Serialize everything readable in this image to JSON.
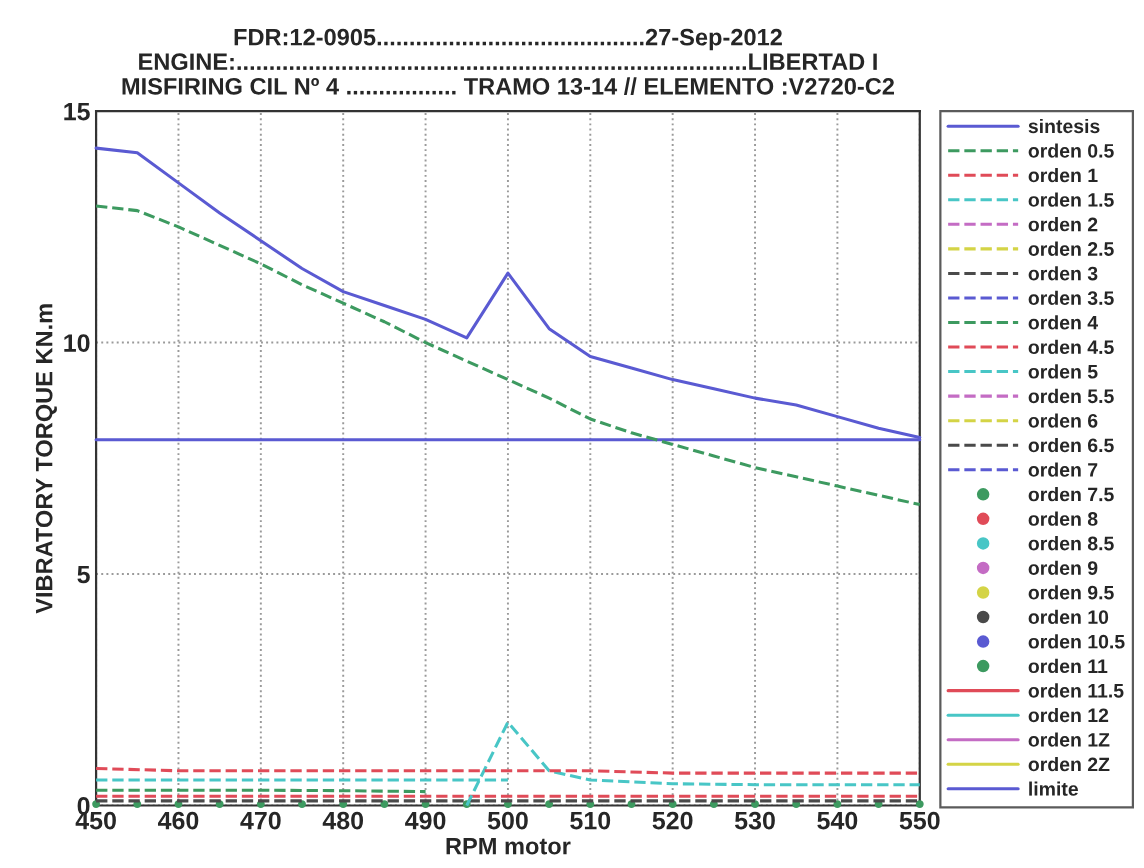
{
  "chart_data": {
    "type": "line",
    "title": "FDR:12-0905.........................................27-Sep-2012\nENGINE:..............................................................................LIBERTAD I\nMISFIRING CIL Nº 4 ................. TRAMO 13-14 // ELEMENTO :V2720-C2",
    "xlabel": "RPM motor",
    "ylabel": "VIBRATORY TORQUE KN.m",
    "x": [
      450,
      460,
      470,
      480,
      490,
      500,
      510,
      520,
      530,
      540,
      550
    ],
    "xlim": [
      450,
      550
    ],
    "ylim": [
      0,
      15
    ],
    "xticks": [
      450,
      460,
      470,
      480,
      490,
      500,
      510,
      520,
      530,
      540,
      550
    ],
    "yticks": [
      0,
      5,
      10,
      15
    ],
    "grid": true,
    "legend": "right",
    "series": [
      {
        "name": "sintesis",
        "color": "#5a5ad2",
        "line_style": "solid",
        "x": [
          450,
          455,
          460,
          465,
          470,
          475,
          480,
          485,
          490,
          495,
          500,
          505,
          510,
          515,
          520,
          525,
          530,
          535,
          540,
          545,
          550
        ],
        "values": [
          14.2,
          14.1,
          13.45,
          12.8,
          12.2,
          11.6,
          11.1,
          10.8,
          10.5,
          10.1,
          11.5,
          10.3,
          9.7,
          9.45,
          9.2,
          9.0,
          8.8,
          8.65,
          8.4,
          8.15,
          7.95
        ]
      },
      {
        "name": "orden 0.5",
        "color": "#3d9a60",
        "line_style": "dashed",
        "x": [
          450,
          455,
          460,
          465,
          470,
          475,
          480,
          485,
          490,
          495,
          500,
          505,
          510,
          515,
          520,
          525,
          530,
          535,
          540,
          545,
          550
        ],
        "values": [
          12.95,
          12.85,
          12.5,
          12.1,
          11.7,
          11.25,
          10.85,
          10.45,
          10.0,
          9.6,
          9.2,
          8.8,
          8.35,
          8.05,
          7.8,
          7.55,
          7.3,
          7.1,
          6.9,
          6.7,
          6.5
        ]
      },
      {
        "name": "orden 1",
        "color": "#e04b58",
        "line_style": "dashed",
        "values": [
          0.8,
          0.75,
          0.75,
          0.75,
          0.75,
          0.75,
          0.75,
          0.7,
          0.7,
          0.7,
          0.7
        ]
      },
      {
        "name": "orden 1.5",
        "color": "#48c6c6",
        "line_style": "dashed",
        "x": [
          495,
          500,
          505,
          510,
          520,
          530,
          540,
          550
        ],
        "values": [
          0,
          1.8,
          0.75,
          0.55,
          0.47,
          0.45,
          0.45,
          0.45
        ]
      },
      {
        "name": "orden 2",
        "color": "#c46cc4",
        "line_style": "dashed",
        "values": [
          null,
          null,
          null,
          null,
          null,
          null,
          null,
          null,
          null,
          null,
          null
        ]
      },
      {
        "name": "orden 2.5",
        "color": "#d4d446",
        "line_style": "dashed",
        "values": [
          null,
          null,
          null,
          null,
          null,
          null,
          null,
          null,
          null,
          null,
          null
        ]
      },
      {
        "name": "orden 3",
        "color": "#4a4a4a",
        "line_style": "dashed",
        "values": [
          0.1,
          0.1,
          0.1,
          0.1,
          0.1,
          0.1,
          0.1,
          0.1,
          0.1,
          0.1,
          0.1
        ]
      },
      {
        "name": "orden 3.5",
        "color": "#5a5ad2",
        "line_style": "dashed",
        "values": [
          null,
          null,
          null,
          null,
          null,
          null,
          null,
          null,
          null,
          null,
          null
        ]
      },
      {
        "name": "orden 4",
        "color": "#3d9a60",
        "line_style": "dashed",
        "x": [
          450,
          460,
          470,
          480,
          490
        ],
        "values": [
          0.33,
          0.33,
          0.33,
          0.32,
          0.3
        ]
      },
      {
        "name": "orden 4.5",
        "color": "#e04b58",
        "line_style": "dashed",
        "values": [
          0.2,
          0.2,
          0.2,
          0.2,
          0.2,
          0.2,
          0.2,
          0.2,
          0.2,
          0.2,
          0.2
        ]
      },
      {
        "name": "orden 5",
        "color": "#48c6c6",
        "line_style": "dashed",
        "x": [
          450,
          460,
          470,
          480,
          490,
          500
        ],
        "values": [
          0.55,
          0.55,
          0.55,
          0.55,
          0.55,
          0.55
        ]
      },
      {
        "name": "orden 5.5",
        "color": "#c46cc4",
        "line_style": "dashed",
        "values": [
          null,
          null,
          null,
          null,
          null,
          null,
          null,
          null,
          null,
          null,
          null
        ]
      },
      {
        "name": "orden 6",
        "color": "#d4d446",
        "line_style": "dashed",
        "values": [
          null,
          null,
          null,
          null,
          null,
          null,
          null,
          null,
          null,
          null,
          null
        ]
      },
      {
        "name": "orden 6.5",
        "color": "#4a4a4a",
        "line_style": "dashed",
        "values": [
          null,
          null,
          null,
          null,
          null,
          null,
          null,
          null,
          null,
          null,
          null
        ]
      },
      {
        "name": "orden 7",
        "color": "#5a5ad2",
        "line_style": "dashed",
        "values": [
          null,
          null,
          null,
          null,
          null,
          null,
          null,
          null,
          null,
          null,
          null
        ]
      },
      {
        "name": "orden 7.5",
        "color": "#3d9a60",
        "type": "scatter",
        "marker": "circle",
        "values": [
          null,
          null,
          null,
          null,
          null,
          null,
          null,
          null,
          null,
          null,
          null
        ]
      },
      {
        "name": "orden 8",
        "color": "#e04b58",
        "type": "scatter",
        "marker": "circle",
        "values": [
          null,
          null,
          null,
          null,
          null,
          null,
          null,
          null,
          null,
          null,
          null
        ]
      },
      {
        "name": "orden 8.5",
        "color": "#48c6c6",
        "type": "scatter",
        "marker": "circle",
        "values": [
          null,
          null,
          null,
          null,
          null,
          null,
          null,
          null,
          null,
          null,
          null
        ]
      },
      {
        "name": "orden 9",
        "color": "#c46cc4",
        "type": "scatter",
        "marker": "circle",
        "values": [
          null,
          null,
          null,
          null,
          null,
          null,
          null,
          null,
          null,
          null,
          null
        ]
      },
      {
        "name": "orden 9.5",
        "color": "#d4d446",
        "type": "scatter",
        "marker": "circle",
        "values": [
          null,
          null,
          null,
          null,
          null,
          null,
          null,
          null,
          null,
          null,
          null
        ]
      },
      {
        "name": "orden 10",
        "color": "#4a4a4a",
        "type": "scatter",
        "marker": "circle",
        "values": [
          null,
          null,
          null,
          null,
          null,
          null,
          null,
          null,
          null,
          null,
          null
        ]
      },
      {
        "name": "orden 10.5",
        "color": "#5a5ad2",
        "type": "scatter",
        "marker": "circle",
        "values": [
          null,
          null,
          null,
          null,
          null,
          null,
          null,
          null,
          null,
          null,
          null
        ]
      },
      {
        "name": "orden 11",
        "color": "#3d9a60",
        "type": "scatter",
        "marker": "circle",
        "x": [
          450,
          455,
          460,
          465,
          470,
          475,
          480,
          485,
          490,
          495,
          500,
          505,
          510,
          515,
          520,
          525,
          530,
          535,
          540,
          545,
          550
        ],
        "values": [
          0.03,
          0.03,
          0.03,
          0.03,
          0.03,
          0.03,
          0.03,
          0.03,
          0.03,
          0.03,
          0.03,
          0.03,
          0.03,
          0.03,
          0.03,
          0.03,
          0.03,
          0.03,
          0.03,
          0.03,
          0.03
        ]
      },
      {
        "name": "orden 11.5",
        "color": "#e04b58",
        "line_style": "solid",
        "values": [
          null,
          null,
          null,
          null,
          null,
          null,
          null,
          null,
          null,
          null,
          null
        ]
      },
      {
        "name": "orden 12",
        "color": "#48c6c6",
        "line_style": "solid",
        "values": [
          null,
          null,
          null,
          null,
          null,
          null,
          null,
          null,
          null,
          null,
          null
        ]
      },
      {
        "name": "orden 1Z",
        "color": "#c46cc4",
        "line_style": "solid",
        "values": [
          null,
          null,
          null,
          null,
          null,
          null,
          null,
          null,
          null,
          null,
          null
        ]
      },
      {
        "name": "orden 2Z",
        "color": "#d4d446",
        "line_style": "solid",
        "values": [
          null,
          null,
          null,
          null,
          null,
          null,
          null,
          null,
          null,
          null,
          null
        ]
      },
      {
        "name": "limite",
        "color": "#5a5ad2",
        "line_style": "solid",
        "x": [
          450,
          550
        ],
        "values": [
          7.9,
          7.9
        ]
      }
    ]
  }
}
